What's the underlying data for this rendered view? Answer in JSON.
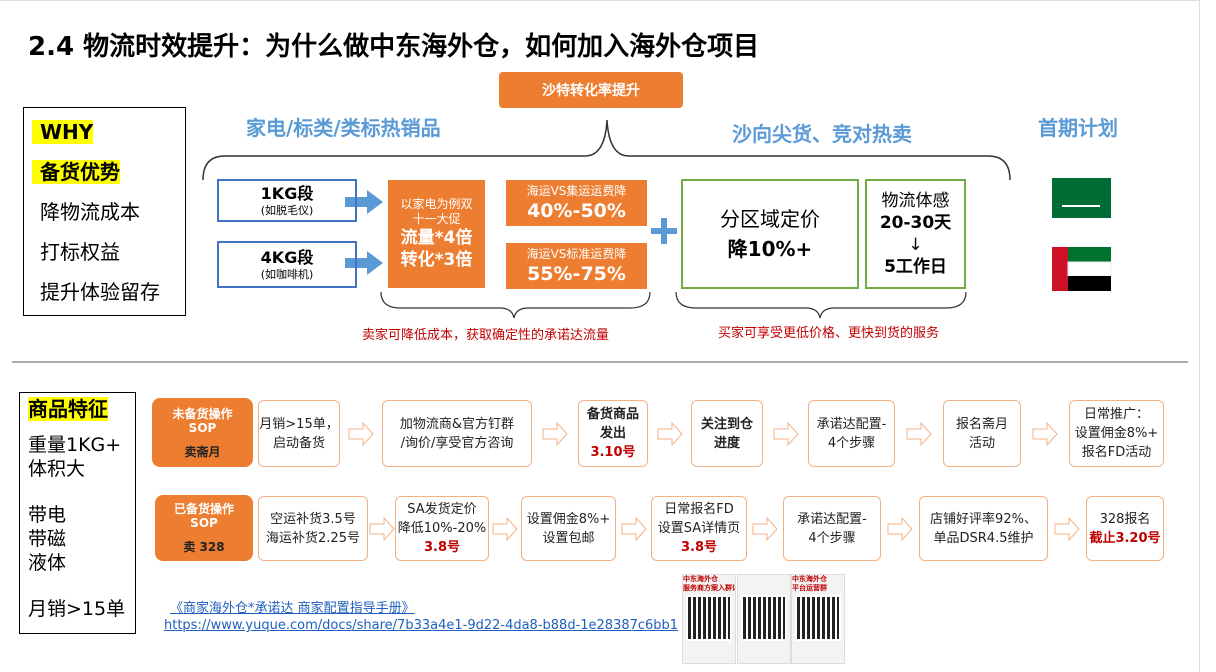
{
  "title": "2.4 物流时效提升：为什么做中东海外仓，如何加入海外仓项目",
  "top": {
    "badge": "沙特转化率提升",
    "left_heading": "家电/标类/类标热销品",
    "right_heading": "沙向尖货、竞对热卖",
    "plan_heading": "首期计划",
    "why": [
      "WHY",
      "备货优势",
      "降物流成本",
      "打标权益",
      "提升体验留存"
    ],
    "weights": [
      {
        "label": "1KG段",
        "sub": "(如脱毛仪)"
      },
      {
        "label": "4KG段",
        "sub": "(如咖啡机)"
      }
    ],
    "promo": {
      "intro": [
        "以家电为例双",
        "十一大促"
      ],
      "big": [
        "流量*4倍",
        "转化*3倍"
      ]
    },
    "savings": [
      {
        "label": "海运VS集运运费降",
        "value": "40%-50%"
      },
      {
        "label": "海运VS标准运费降",
        "value": "55%-75%"
      }
    ],
    "pricing": [
      "分区域定价",
      "降10%+"
    ],
    "logistics": [
      "物流体感",
      "20-30天",
      "↓",
      "5工作日"
    ],
    "seller_note": "卖家可降低成本，获取确定性的承诺达流量",
    "buyer_note": "买家可享受更低价格、更快到货的服务"
  },
  "features": {
    "heading": "商品特征",
    "groups": [
      [
        "重量1KG+",
        "体积大"
      ],
      [
        "带电",
        "带磁",
        "液体"
      ],
      [
        "月销>15单"
      ]
    ]
  },
  "sop": [
    {
      "label": [
        "未备货操作",
        "SOP"
      ],
      "sub": "卖斋月",
      "steps": [
        {
          "text": [
            "月销>15单，",
            "启动备货"
          ]
        },
        {
          "text": [
            "加物流商&官方钉群",
            "/询价/享受官方咨询"
          ]
        },
        {
          "text": [
            "备货商品",
            "发出"
          ],
          "date": "3.10号"
        },
        {
          "text": [
            "关注到仓",
            "进度"
          ]
        },
        {
          "text": [
            "承诺达配置-",
            "4个步骤"
          ]
        },
        {
          "text": [
            "报名斋月",
            "活动"
          ]
        },
        {
          "text": [
            "日常推广：",
            "设置佣金8%+",
            "报名FD活动"
          ]
        }
      ]
    },
    {
      "label": [
        "已备货操作",
        "SOP"
      ],
      "sub": "卖 328",
      "steps": [
        {
          "text": [
            "空运补货3.5号",
            "海运补货2.25号"
          ]
        },
        {
          "text": [
            "SA发货定价",
            "降低10%-20%"
          ],
          "date": "3.8号"
        },
        {
          "text": [
            "设置佣金8%+",
            "设置包邮"
          ]
        },
        {
          "text": [
            "日常报名FD",
            "设置SA详情页"
          ],
          "date": "3.8号"
        },
        {
          "text": [
            "承诺达配置-",
            "4个步骤"
          ]
        },
        {
          "text": [
            "店铺好评率92%、",
            "单品DSR4.5维护"
          ]
        },
        {
          "text": [
            "328报名"
          ],
          "date": "截止3.20号"
        }
      ]
    }
  ],
  "link": {
    "title": "《商家海外仓*承诺达 商家配置指导手册》",
    "url": "https://www.yuque.com/docs/share/7b33a4e1-9d22-4da8-b88d-1e28387c6bb1"
  },
  "qr": [
    {
      "header": [
        "中东海外仓",
        "服务商方案入群详细了解"
      ]
    },
    {
      "header": []
    },
    {
      "header": [
        "中东海外仓",
        "平台运营群"
      ]
    }
  ]
}
